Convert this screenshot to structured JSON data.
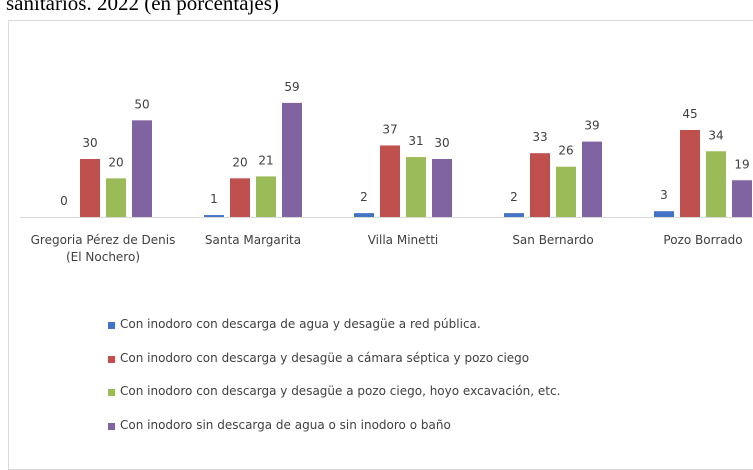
{
  "chart_data": {
    "type": "bar",
    "title": "sanitarios. 2022 (en porcentajes)",
    "categories": [
      "Gregoria Pérez de Denis (El Nochero)",
      "Santa Margarita",
      "Villa Minetti",
      "San Bernardo",
      "Pozo Borrado"
    ],
    "series": [
      {
        "name": "Con inodoro con descarga de agua y desagüe a red pública.",
        "color": "#4472c4",
        "values": [
          0,
          1,
          2,
          2,
          3
        ]
      },
      {
        "name": "Con inodoro con descarga y desagüe a cámara séptica y pozo ciego",
        "color": "#c0504d",
        "values": [
          30,
          20,
          37,
          33,
          45
        ]
      },
      {
        "name": "Con inodoro con descarga y desagüe a pozo ciego, hoyo excavación, etc.",
        "color": "#9bbb59",
        "values": [
          20,
          21,
          31,
          26,
          34
        ]
      },
      {
        "name": "Con inodoro sin descarga de agua o sin inodoro o baño",
        "color": "#8064a2",
        "values": [
          50,
          59,
          30,
          39,
          19
        ]
      }
    ],
    "ylim": [
      0,
      60
    ]
  }
}
